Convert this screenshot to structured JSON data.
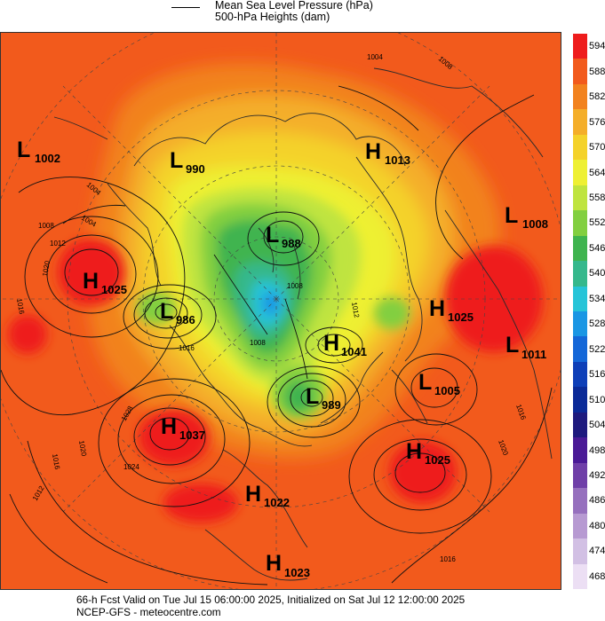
{
  "legend": {
    "line_label": "Mean Sea Level Pressure (hPa)",
    "fill_label": "500-hPa Heights (dam)"
  },
  "colorbar": [
    {
      "value": "594",
      "color": "#ee1c1c"
    },
    {
      "value": "588",
      "color": "#f25a1c"
    },
    {
      "value": "582",
      "color": "#f2821e"
    },
    {
      "value": "576",
      "color": "#f4ae29"
    },
    {
      "value": "570",
      "color": "#f4d22a"
    },
    {
      "value": "564",
      "color": "#eef033"
    },
    {
      "value": "558",
      "color": "#bfe43f"
    },
    {
      "value": "552",
      "color": "#82cf40"
    },
    {
      "value": "546",
      "color": "#3fb44f"
    },
    {
      "value": "540",
      "color": "#35b88c"
    },
    {
      "value": "534",
      "color": "#26c4d8"
    },
    {
      "value": "528",
      "color": "#1a96e4"
    },
    {
      "value": "522",
      "color": "#1467d8"
    },
    {
      "value": "516",
      "color": "#0e3fb8"
    },
    {
      "value": "510",
      "color": "#0a2a98"
    },
    {
      "value": "504",
      "color": "#1e1a7e"
    },
    {
      "value": "498",
      "color": "#4a1a96"
    },
    {
      "value": "492",
      "color": "#6f3fa8"
    },
    {
      "value": "486",
      "color": "#9670be"
    },
    {
      "value": "480",
      "color": "#b79ad2"
    },
    {
      "value": "474",
      "color": "#d2c0e4"
    },
    {
      "value": "468",
      "color": "#ecdff4"
    }
  ],
  "pressure_centers": [
    {
      "type": "L",
      "value": "1002"
    },
    {
      "type": "L",
      "value": "990"
    },
    {
      "type": "H",
      "value": "1013"
    },
    {
      "type": "L",
      "value": "1008"
    },
    {
      "type": "L",
      "value": "988"
    },
    {
      "type": "H",
      "value": "1025"
    },
    {
      "type": "L",
      "value": "986"
    },
    {
      "type": "H",
      "value": "1025"
    },
    {
      "type": "H",
      "value": "1041"
    },
    {
      "type": "L",
      "value": "1011"
    },
    {
      "type": "L",
      "value": "1005"
    },
    {
      "type": "L",
      "value": "989"
    },
    {
      "type": "H",
      "value": "1037"
    },
    {
      "type": "H",
      "value": "1025"
    },
    {
      "type": "H",
      "value": "1022"
    },
    {
      "type": "H",
      "value": "1023"
    }
  ],
  "isobar_labels": [
    "1004",
    "1008",
    "1012",
    "1016",
    "1020",
    "1024",
    "1028",
    "1004",
    "1008",
    "1012",
    "1016",
    "1020",
    "1016",
    "1020",
    "1004",
    "1016",
    "1012",
    "1008",
    "1016",
    "1008"
  ],
  "footer": {
    "line1": "66-h Fcst Valid on Tue Jul 15 06:00:00 2025, Initialized on Sat Jul 12 12:00:00 2025",
    "line2": "NCEP-GFS  - meteocentre.com"
  }
}
